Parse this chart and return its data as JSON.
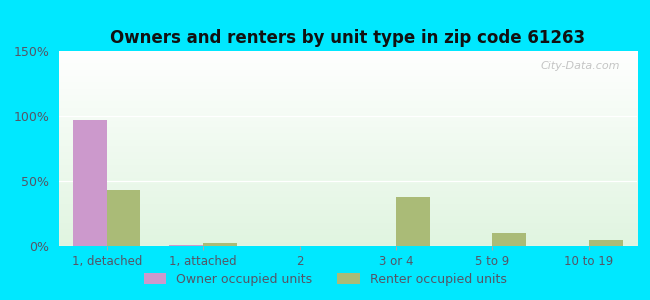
{
  "title": "Owners and renters by unit type in zip code 61263",
  "categories": [
    "1, detached",
    "1, attached",
    "2",
    "3 or 4",
    "5 to 9",
    "10 to 19"
  ],
  "owner_values": [
    97,
    1,
    0,
    0,
    0,
    0
  ],
  "renter_values": [
    43,
    2,
    0,
    38,
    10,
    5
  ],
  "owner_color": "#cc99cc",
  "renter_color": "#aabb77",
  "ylim": [
    0,
    150
  ],
  "yticks": [
    0,
    50,
    100,
    150
  ],
  "ytick_labels": [
    "0%",
    "50%",
    "100%",
    "150%"
  ],
  "bar_width": 0.35,
  "figure_bg": "#00e8ff",
  "legend_owner": "Owner occupied units",
  "legend_renter": "Renter occupied units",
  "watermark": "City-Data.com",
  "grid_color": "#ffffff",
  "tick_label_color": "#555566"
}
